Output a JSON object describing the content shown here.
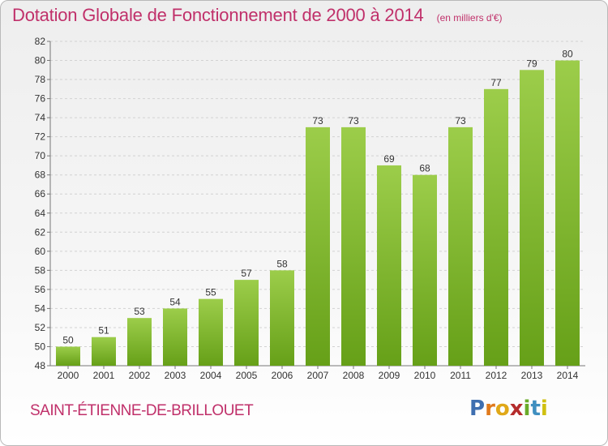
{
  "chart_data": {
    "type": "bar",
    "title": "Dotation Globale de Fonctionnement de 2000 à 2014",
    "subtitle": "(en milliers d'€)",
    "categories": [
      "2000",
      "2001",
      "2002",
      "2003",
      "2004",
      "2005",
      "2006",
      "2007",
      "2008",
      "2009",
      "2010",
      "2011",
      "2012",
      "2013",
      "2014"
    ],
    "values": [
      50,
      51,
      53,
      54,
      55,
      57,
      58,
      73,
      73,
      69,
      68,
      73,
      77,
      79,
      80
    ],
    "ylim": [
      48,
      82
    ],
    "yticks": [
      48,
      50,
      52,
      54,
      56,
      58,
      60,
      62,
      64,
      66,
      68,
      70,
      72,
      74,
      76,
      78,
      80,
      82
    ],
    "grid": true,
    "xlabel": "",
    "ylabel": "",
    "bar_color_top": "#9ccd4a",
    "bar_color_bottom": "#66a018"
  },
  "footer": {
    "town": "SAINT-ÉTIENNE-DE-BRILLOUET",
    "logo_letters": [
      "P",
      "r",
      "o",
      "x",
      "i",
      "t",
      "i"
    ]
  },
  "colors": {
    "accent": "#c0306a"
  }
}
